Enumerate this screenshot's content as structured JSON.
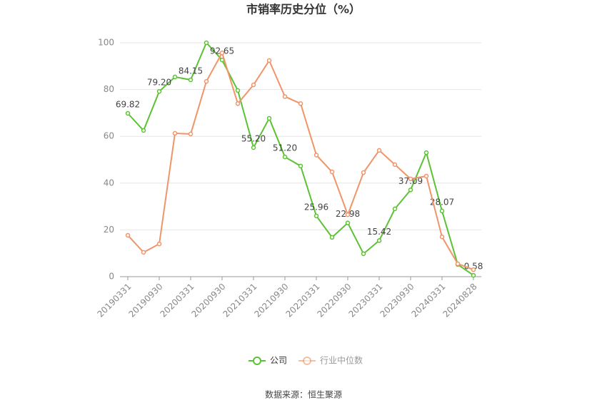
{
  "chart_data": {
    "type": "line",
    "title": "市销率历史分位（%）",
    "source": "数据来源：恒生聚源",
    "categories": [
      "20190331",
      null,
      "20190930",
      null,
      "20200331",
      null,
      "20200930",
      null,
      "20210331",
      null,
      "20210930",
      null,
      "20220331",
      null,
      "20220930",
      null,
      "20230331",
      null,
      "20230930",
      null,
      "20240331",
      null,
      "20240828"
    ],
    "series": [
      {
        "name": "公司",
        "color": "#5cc234",
        "values": [
          69.82,
          62.5,
          79.2,
          85.4,
          84.15,
          100,
          92.65,
          79.6,
          55.2,
          67.7,
          51.2,
          47.3,
          25.96,
          16.8,
          22.98,
          9.8,
          15.42,
          29,
          37.09,
          53,
          28.07,
          5.2,
          0.58
        ],
        "value_labels": [
          "69.82",
          null,
          "79.20",
          null,
          "84.15",
          null,
          "92.65",
          null,
          "55.20",
          null,
          "51.20",
          null,
          "25.96",
          null,
          "22.98",
          null,
          "15.42",
          null,
          "37.09",
          null,
          "28.07",
          null,
          "0.58"
        ]
      },
      {
        "name": "行业中位数",
        "color": "#f0956a",
        "values": [
          17.7,
          10.4,
          14,
          61.3,
          61,
          83.5,
          95.7,
          74,
          82,
          92.4,
          77,
          74,
          52,
          44.8,
          26.5,
          44.5,
          54,
          47.9,
          41.8,
          43,
          17,
          5.5,
          3
        ]
      }
    ],
    "ylim": [
      0,
      100
    ],
    "yticks": [
      0,
      20,
      40,
      60,
      80,
      100
    ],
    "grid": true
  }
}
